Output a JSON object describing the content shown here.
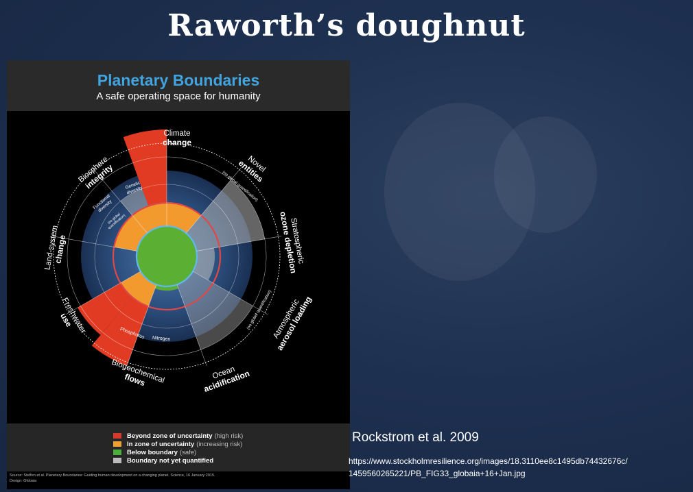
{
  "slide": {
    "title": "Raworth’s doughnut",
    "citation": "Rockstrom et al. 2009",
    "url_line1": "https://www.stockholmresilience.org/images/18.3110ee8c1495db74432676c/",
    "url_line2": "1459560265221/PB_FIG33_globaia+16+Jan.jpg"
  },
  "figure": {
    "title": "Planetary Boundaries",
    "subtitle": "A safe operating space for humanity",
    "sectors": [
      {
        "line1": "Climate",
        "line2": "change"
      },
      {
        "line1": "Novel",
        "line2": "entities"
      },
      {
        "line1": "Stratospheric",
        "line2": "ozone depletion"
      },
      {
        "line1": "Atmospheric",
        "line2": "aerosol loading"
      },
      {
        "line1": "Ocean",
        "line2": "acidification"
      },
      {
        "line1": "Biogeochemical",
        "line2": "flows"
      },
      {
        "line1": "Freshwater",
        "line2": "use"
      },
      {
        "line1": "Land-system",
        "line2": "change"
      },
      {
        "line1": "Biosphere",
        "line2": "integrity"
      }
    ],
    "inner_labels": {
      "genetic_1": "Genetic",
      "genetic_2": "diversity",
      "functional_1": "Functional",
      "functional_2": "diversity",
      "no_global_short_1": "(no global",
      "no_global_short_2": "quantification)",
      "no_global_novel": "(no global quantification)",
      "no_global_aerosol": "(no global quantification)",
      "phosphorus": "Phosphorus",
      "nitrogen": "Nitrogen"
    },
    "legend": [
      {
        "label": "Beyond zone of uncertainty",
        "note": "(high risk)",
        "color": "#d63a2a"
      },
      {
        "label": "In zone of uncertainty",
        "note": "(increasing risk)",
        "color": "#f0a030"
      },
      {
        "label": "Below boundary",
        "note": "(safe)",
        "color": "#4caf3a"
      },
      {
        "label": "Boundary not yet quantified",
        "note": "",
        "color": "#bdbdbd"
      }
    ],
    "source_line": "Source: Steffen et al. Planetary Boundaries: Guiding human development on a changing planet. Science, 16 January 2015.",
    "design_line": "Design: Globaia",
    "colors": {
      "red": "#e23b23",
      "orange": "#f29a2e",
      "green": "#5bb033",
      "grey": "#b8b8b8",
      "boundary_blue": "#5fb8f0",
      "boundary_red": "#e04848"
    }
  }
}
